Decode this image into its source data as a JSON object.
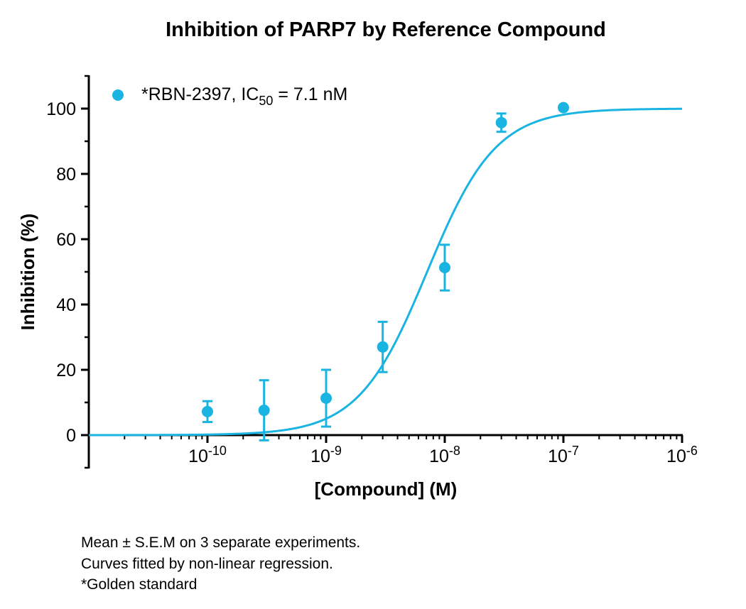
{
  "chart_data": {
    "type": "scatter",
    "title": "Inhibition of PARP7 by Reference Compound",
    "xlabel": "[Compound] (M)",
    "ylabel": "Inhibition (%)",
    "x_scale": "log",
    "xlim": [
      1e-11,
      1e-06
    ],
    "ylim": [
      -10,
      110
    ],
    "x_ticks": [
      {
        "value": 1e-10,
        "base": "10",
        "exp": "-10"
      },
      {
        "value": 1e-09,
        "base": "10",
        "exp": "-9"
      },
      {
        "value": 1e-08,
        "base": "10",
        "exp": "-8"
      },
      {
        "value": 1e-07,
        "base": "10",
        "exp": "-7"
      },
      {
        "value": 1e-06,
        "base": "10",
        "exp": "-6"
      }
    ],
    "y_ticks": [
      0,
      20,
      40,
      60,
      80,
      100
    ],
    "grid": false,
    "legend_position": "top-left",
    "series": [
      {
        "name": "*RBN-2397, IC50 = 7.1 nM",
        "legend_parts": {
          "main": "*RBN-2397, IC",
          "sub": "50",
          "tail": " = 7.1 nM"
        },
        "color": "#1ab4e2",
        "points": [
          {
            "x": 1e-10,
            "y": 7.2,
            "sem": 3.2
          },
          {
            "x": 3e-10,
            "y": 7.6,
            "sem": 9.2
          },
          {
            "x": 1e-09,
            "y": 11.3,
            "sem": 8.7
          },
          {
            "x": 3e-09,
            "y": 27.0,
            "sem": 7.7
          },
          {
            "x": 1e-08,
            "y": 51.3,
            "sem": 7.0
          },
          {
            "x": 3e-08,
            "y": 95.7,
            "sem": 2.8
          },
          {
            "x": 1e-07,
            "y": 100.3,
            "sem": 0
          }
        ],
        "fit": {
          "model": "four-parameter logistic",
          "bottom": 0,
          "top": 100,
          "ic50": 7.1e-09,
          "hill": 1.5
        }
      }
    ]
  },
  "notes": [
    "Mean ± S.E.M on 3 separate experiments.",
    "Curves fitted by non-linear regression.",
    "*Golden standard"
  ]
}
